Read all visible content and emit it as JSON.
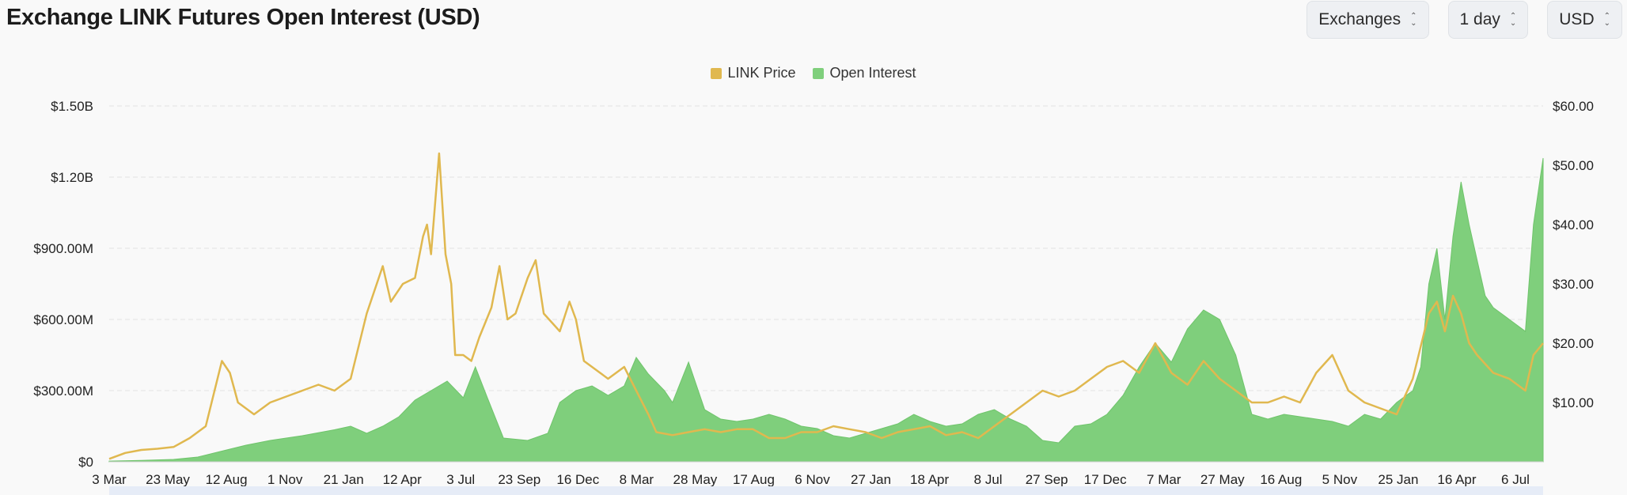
{
  "title": "Exchange LINK Futures Open Interest (USD)",
  "selectors": [
    {
      "label": "Exchanges"
    },
    {
      "label": "1 day"
    },
    {
      "label": "USD"
    }
  ],
  "colors": {
    "price": "#e0b84f",
    "oi": "#7fcf7c",
    "grid": "#e4e4e4"
  },
  "chart_data": {
    "type": "area",
    "legend": [
      {
        "name": "LINK Price",
        "color": "#e0b84f"
      },
      {
        "name": "Open Interest",
        "color": "#7fcf7c"
      }
    ],
    "legend_position": "top-center",
    "grid": true,
    "x_ticks": [
      "3 Mar",
      "23 May",
      "12 Aug",
      "1 Nov",
      "21 Jan",
      "12 Apr",
      "3 Jul",
      "23 Sep",
      "16 Dec",
      "8 Mar",
      "28 May",
      "17 Aug",
      "6 Nov",
      "27 Jan",
      "18 Apr",
      "8 Jul",
      "27 Sep",
      "17 Dec",
      "7 Mar",
      "27 May",
      "16 Aug",
      "5 Nov",
      "25 Jan",
      "16 Apr",
      "6 Jul"
    ],
    "y_left_ticks": [
      "$0",
      "$300.00M",
      "$600.00M",
      "$900.00M",
      "$1.20B",
      "$1.50B"
    ],
    "y_right_ticks": [
      "$10.00",
      "$20.00",
      "$30.00",
      "$40.00",
      "$50.00",
      "$60.00"
    ],
    "y_left_range": [
      0,
      1500000000
    ],
    "y_right_range": [
      0,
      60
    ],
    "x_range": [
      0,
      1782
    ],
    "series": [
      {
        "name": "Open Interest",
        "axis": "left",
        "points": [
          [
            0,
            3000000
          ],
          [
            40,
            6000000
          ],
          [
            80,
            10000000
          ],
          [
            110,
            20000000
          ],
          [
            140,
            45000000
          ],
          [
            170,
            70000000
          ],
          [
            200,
            90000000
          ],
          [
            240,
            110000000
          ],
          [
            280,
            135000000
          ],
          [
            300,
            150000000
          ],
          [
            320,
            120000000
          ],
          [
            340,
            150000000
          ],
          [
            360,
            190000000
          ],
          [
            380,
            260000000
          ],
          [
            400,
            300000000
          ],
          [
            420,
            340000000
          ],
          [
            440,
            270000000
          ],
          [
            455,
            400000000
          ],
          [
            470,
            270000000
          ],
          [
            490,
            100000000
          ],
          [
            520,
            90000000
          ],
          [
            545,
            120000000
          ],
          [
            560,
            250000000
          ],
          [
            580,
            300000000
          ],
          [
            600,
            320000000
          ],
          [
            620,
            280000000
          ],
          [
            640,
            320000000
          ],
          [
            655,
            440000000
          ],
          [
            670,
            370000000
          ],
          [
            690,
            300000000
          ],
          [
            700,
            250000000
          ],
          [
            720,
            420000000
          ],
          [
            740,
            220000000
          ],
          [
            760,
            180000000
          ],
          [
            780,
            170000000
          ],
          [
            800,
            180000000
          ],
          [
            820,
            200000000
          ],
          [
            840,
            180000000
          ],
          [
            860,
            150000000
          ],
          [
            880,
            140000000
          ],
          [
            900,
            110000000
          ],
          [
            920,
            100000000
          ],
          [
            940,
            120000000
          ],
          [
            960,
            140000000
          ],
          [
            980,
            160000000
          ],
          [
            1000,
            200000000
          ],
          [
            1020,
            170000000
          ],
          [
            1040,
            150000000
          ],
          [
            1060,
            160000000
          ],
          [
            1080,
            200000000
          ],
          [
            1100,
            220000000
          ],
          [
            1120,
            180000000
          ],
          [
            1140,
            150000000
          ],
          [
            1160,
            90000000
          ],
          [
            1180,
            80000000
          ],
          [
            1200,
            150000000
          ],
          [
            1220,
            160000000
          ],
          [
            1240,
            200000000
          ],
          [
            1260,
            280000000
          ],
          [
            1280,
            400000000
          ],
          [
            1300,
            500000000
          ],
          [
            1320,
            420000000
          ],
          [
            1340,
            560000000
          ],
          [
            1360,
            640000000
          ],
          [
            1380,
            600000000
          ],
          [
            1400,
            450000000
          ],
          [
            1420,
            200000000
          ],
          [
            1440,
            180000000
          ],
          [
            1460,
            200000000
          ],
          [
            1480,
            190000000
          ],
          [
            1500,
            180000000
          ],
          [
            1520,
            170000000
          ],
          [
            1540,
            150000000
          ],
          [
            1560,
            200000000
          ],
          [
            1580,
            180000000
          ],
          [
            1600,
            250000000
          ],
          [
            1620,
            300000000
          ],
          [
            1630,
            400000000
          ],
          [
            1640,
            750000000
          ],
          [
            1650,
            900000000
          ],
          [
            1660,
            600000000
          ],
          [
            1670,
            950000000
          ],
          [
            1680,
            1180000000
          ],
          [
            1690,
            1000000000
          ],
          [
            1700,
            850000000
          ],
          [
            1710,
            700000000
          ],
          [
            1720,
            650000000
          ],
          [
            1740,
            600000000
          ],
          [
            1760,
            550000000
          ],
          [
            1770,
            1000000000
          ],
          [
            1782,
            1280000000
          ]
        ]
      },
      {
        "name": "LINK Price",
        "axis": "right",
        "points": [
          [
            0,
            0.5
          ],
          [
            20,
            1.5
          ],
          [
            40,
            2
          ],
          [
            60,
            2.2
          ],
          [
            80,
            2.5
          ],
          [
            100,
            4
          ],
          [
            120,
            6
          ],
          [
            140,
            17
          ],
          [
            150,
            15
          ],
          [
            160,
            10
          ],
          [
            180,
            8
          ],
          [
            200,
            10
          ],
          [
            220,
            11
          ],
          [
            240,
            12
          ],
          [
            260,
            13
          ],
          [
            280,
            12
          ],
          [
            300,
            14
          ],
          [
            320,
            25
          ],
          [
            340,
            33
          ],
          [
            350,
            27
          ],
          [
            365,
            30
          ],
          [
            380,
            31
          ],
          [
            390,
            38
          ],
          [
            395,
            40
          ],
          [
            400,
            35
          ],
          [
            410,
            52
          ],
          [
            418,
            35
          ],
          [
            425,
            30
          ],
          [
            430,
            18
          ],
          [
            440,
            18
          ],
          [
            450,
            17
          ],
          [
            460,
            21
          ],
          [
            475,
            26
          ],
          [
            485,
            33
          ],
          [
            495,
            24
          ],
          [
            505,
            25
          ],
          [
            520,
            31
          ],
          [
            530,
            34
          ],
          [
            540,
            25
          ],
          [
            560,
            22
          ],
          [
            572,
            27
          ],
          [
            580,
            24
          ],
          [
            590,
            17
          ],
          [
            600,
            16
          ],
          [
            610,
            15
          ],
          [
            620,
            14
          ],
          [
            640,
            16
          ],
          [
            655,
            12
          ],
          [
            670,
            8
          ],
          [
            680,
            5
          ],
          [
            700,
            4.5
          ],
          [
            720,
            5
          ],
          [
            740,
            5.5
          ],
          [
            760,
            5
          ],
          [
            780,
            5.5
          ],
          [
            800,
            5.5
          ],
          [
            820,
            4
          ],
          [
            840,
            4
          ],
          [
            860,
            5
          ],
          [
            880,
            5
          ],
          [
            900,
            6
          ],
          [
            920,
            5.5
          ],
          [
            940,
            5
          ],
          [
            960,
            4
          ],
          [
            980,
            5
          ],
          [
            1000,
            5.5
          ],
          [
            1020,
            6
          ],
          [
            1040,
            4.5
          ],
          [
            1060,
            5
          ],
          [
            1080,
            4
          ],
          [
            1100,
            6
          ],
          [
            1120,
            8
          ],
          [
            1140,
            10
          ],
          [
            1160,
            12
          ],
          [
            1180,
            11
          ],
          [
            1200,
            12
          ],
          [
            1220,
            14
          ],
          [
            1240,
            16
          ],
          [
            1260,
            17
          ],
          [
            1280,
            15
          ],
          [
            1300,
            20
          ],
          [
            1320,
            15
          ],
          [
            1340,
            13
          ],
          [
            1360,
            17
          ],
          [
            1380,
            14
          ],
          [
            1400,
            12
          ],
          [
            1420,
            10
          ],
          [
            1440,
            10
          ],
          [
            1460,
            11
          ],
          [
            1480,
            10
          ],
          [
            1500,
            15
          ],
          [
            1520,
            18
          ],
          [
            1540,
            12
          ],
          [
            1560,
            10
          ],
          [
            1580,
            9
          ],
          [
            1600,
            8
          ],
          [
            1620,
            14
          ],
          [
            1640,
            25
          ],
          [
            1650,
            27
          ],
          [
            1660,
            22
          ],
          [
            1670,
            28
          ],
          [
            1680,
            25
          ],
          [
            1690,
            20
          ],
          [
            1700,
            18
          ],
          [
            1720,
            15
          ],
          [
            1740,
            14
          ],
          [
            1760,
            12
          ],
          [
            1770,
            18
          ],
          [
            1782,
            20
          ]
        ]
      }
    ]
  }
}
